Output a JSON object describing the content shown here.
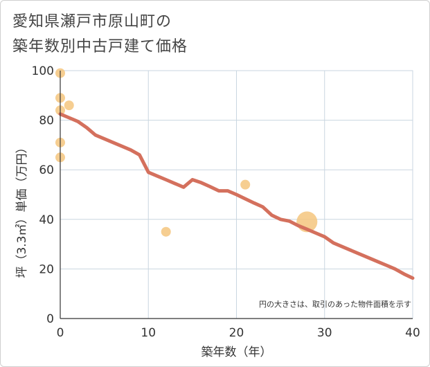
{
  "title_line1": "愛知県瀬戸市原山町の",
  "title_line2": "築年数別中古戸建て価格",
  "chart_data": {
    "type": "scatter",
    "title": "愛知県瀬戸市原山町の築年数別中古戸建て価格",
    "xlabel": "築年数（年）",
    "ylabel": "坪（3.3㎡）単価（万円）",
    "xlim": [
      0,
      40
    ],
    "ylim": [
      0,
      100
    ],
    "x_ticks": [
      0,
      10,
      20,
      30,
      40
    ],
    "y_ticks": [
      0,
      20,
      40,
      60,
      80,
      100
    ],
    "grid": true,
    "note": "円の大きさは、取引のあった物件面積を示す",
    "points": [
      {
        "x": 0,
        "y": 99,
        "size": 1
      },
      {
        "x": 0,
        "y": 89,
        "size": 1
      },
      {
        "x": 1,
        "y": 86,
        "size": 1
      },
      {
        "x": 0,
        "y": 84,
        "size": 1
      },
      {
        "x": 0,
        "y": 71,
        "size": 1
      },
      {
        "x": 0,
        "y": 65,
        "size": 1
      },
      {
        "x": 12,
        "y": 35,
        "size": 1
      },
      {
        "x": 21,
        "y": 54,
        "size": 1
      },
      {
        "x": 28,
        "y": 39,
        "size": 4.8
      }
    ],
    "trend": {
      "x": [
        0,
        1,
        2,
        3,
        4,
        5,
        6,
        7,
        8,
        9,
        10,
        11,
        12,
        13,
        14,
        15,
        16,
        17,
        18,
        19,
        20,
        21,
        22,
        23,
        24,
        25,
        26,
        27,
        28,
        29,
        30,
        31,
        32,
        33,
        34,
        35,
        36,
        37,
        38,
        39,
        40
      ],
      "y": [
        82.5,
        81,
        79.5,
        77,
        74,
        72.5,
        71,
        69.5,
        68,
        66,
        59,
        57.5,
        56,
        54.5,
        53,
        56,
        54.8,
        53.2,
        51.5,
        51.5,
        50,
        48.3,
        46.6,
        45,
        41.7,
        40,
        39.3,
        37.5,
        36,
        34.5,
        33,
        30.5,
        29,
        27.5,
        26,
        24.5,
        23,
        21.5,
        20,
        18,
        16.3
      ]
    },
    "colors": {
      "point": "#f5c57e",
      "trend": "#d4705d",
      "grid": "#c9d6e0",
      "axis": "#333333"
    }
  }
}
